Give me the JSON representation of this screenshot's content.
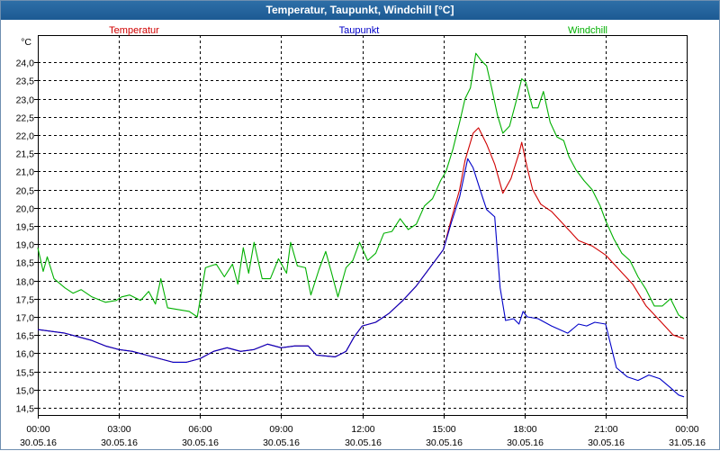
{
  "window": {
    "title": "Temperatur, Taupunkt, Windchill [°C]"
  },
  "chart_data": {
    "type": "line",
    "title": "Temperatur, Taupunkt, Windchill [°C]",
    "ylabel": "°C",
    "xlabel": "",
    "ylim": [
      14.3,
      24.75
    ],
    "y_ticks": [
      14.5,
      15.0,
      15.5,
      16.0,
      16.5,
      17.0,
      17.5,
      18.0,
      18.5,
      19.0,
      19.5,
      20.0,
      20.5,
      21.0,
      21.5,
      22.0,
      22.5,
      23.0,
      23.5,
      24.0
    ],
    "y_tick_labels": [
      "14,5",
      "15,0",
      "15,5",
      "16,0",
      "16,5",
      "17,0",
      "17,5",
      "18,0",
      "18,5",
      "19,0",
      "19,5",
      "20,0",
      "20,5",
      "21,0",
      "21,5",
      "22,0",
      "22,5",
      "23,0",
      "23,5",
      "24,0"
    ],
    "xlim_hours": [
      0,
      24
    ],
    "x_ticks": [
      {
        "hour": 0,
        "time": "00:00",
        "date": "30.05.16"
      },
      {
        "hour": 3,
        "time": "03:00",
        "date": "30.05.16"
      },
      {
        "hour": 6,
        "time": "06:00",
        "date": "30.05.16"
      },
      {
        "hour": 9,
        "time": "09:00",
        "date": "30.05.16"
      },
      {
        "hour": 12,
        "time": "12:00",
        "date": "30.05.16"
      },
      {
        "hour": 15,
        "time": "15:00",
        "date": "30.05.16"
      },
      {
        "hour": 18,
        "time": "18:00",
        "date": "30.05.16"
      },
      {
        "hour": 21,
        "time": "21:00",
        "date": "30.05.16"
      },
      {
        "hour": 24,
        "time": "00:00",
        "date": "31.05.16"
      }
    ],
    "grid": true,
    "legend_position": "top",
    "series": [
      {
        "name": "Temperatur",
        "color": "#d00000",
        "points": [
          [
            0,
            16.65
          ],
          [
            0.5,
            16.6
          ],
          [
            1,
            16.55
          ],
          [
            1.5,
            16.45
          ],
          [
            2,
            16.35
          ],
          [
            2.5,
            16.2
          ],
          [
            3,
            16.1
          ],
          [
            3.5,
            16.05
          ],
          [
            4,
            15.95
          ],
          [
            4.5,
            15.85
          ],
          [
            5,
            15.75
          ],
          [
            5.5,
            15.75
          ],
          [
            6,
            15.85
          ],
          [
            6.5,
            16.05
          ],
          [
            7,
            16.15
          ],
          [
            7.5,
            16.05
          ],
          [
            8,
            16.1
          ],
          [
            8.5,
            16.25
          ],
          [
            9,
            16.15
          ],
          [
            9.5,
            16.2
          ],
          [
            10,
            16.2
          ],
          [
            10.3,
            15.95
          ],
          [
            11,
            15.9
          ],
          [
            11.4,
            16.05
          ],
          [
            11.7,
            16.45
          ],
          [
            12,
            16.75
          ],
          [
            12.5,
            16.85
          ],
          [
            13,
            17.1
          ],
          [
            13.5,
            17.45
          ],
          [
            14,
            17.85
          ],
          [
            14.5,
            18.35
          ],
          [
            15,
            18.85
          ],
          [
            15.3,
            19.7
          ],
          [
            15.6,
            20.5
          ],
          [
            15.8,
            21.3
          ],
          [
            16.1,
            22.05
          ],
          [
            16.3,
            22.2
          ],
          [
            16.6,
            21.75
          ],
          [
            16.9,
            21.2
          ],
          [
            17.2,
            20.4
          ],
          [
            17.5,
            20.8
          ],
          [
            17.8,
            21.5
          ],
          [
            17.9,
            21.8
          ],
          [
            18.1,
            21.1
          ],
          [
            18.3,
            20.5
          ],
          [
            18.6,
            20.1
          ],
          [
            19,
            19.9
          ],
          [
            19.5,
            19.5
          ],
          [
            20,
            19.1
          ],
          [
            20.5,
            18.95
          ],
          [
            21,
            18.7
          ],
          [
            21.5,
            18.3
          ],
          [
            22,
            17.9
          ],
          [
            22.5,
            17.3
          ],
          [
            23,
            16.9
          ],
          [
            23.5,
            16.5
          ],
          [
            23.9,
            16.4
          ]
        ]
      },
      {
        "name": "Taupunkt",
        "color": "#0000c8",
        "points": [
          [
            0,
            16.65
          ],
          [
            0.5,
            16.6
          ],
          [
            1,
            16.55
          ],
          [
            1.5,
            16.45
          ],
          [
            2,
            16.35
          ],
          [
            2.5,
            16.2
          ],
          [
            3,
            16.1
          ],
          [
            3.5,
            16.05
          ],
          [
            4,
            15.95
          ],
          [
            4.5,
            15.85
          ],
          [
            5,
            15.75
          ],
          [
            5.5,
            15.75
          ],
          [
            6,
            15.85
          ],
          [
            6.5,
            16.05
          ],
          [
            7,
            16.15
          ],
          [
            7.5,
            16.05
          ],
          [
            8,
            16.1
          ],
          [
            8.5,
            16.25
          ],
          [
            9,
            16.15
          ],
          [
            9.5,
            16.2
          ],
          [
            10,
            16.2
          ],
          [
            10.3,
            15.95
          ],
          [
            11,
            15.9
          ],
          [
            11.4,
            16.05
          ],
          [
            11.7,
            16.45
          ],
          [
            12,
            16.75
          ],
          [
            12.5,
            16.85
          ],
          [
            13,
            17.1
          ],
          [
            13.5,
            17.45
          ],
          [
            14,
            17.85
          ],
          [
            14.5,
            18.35
          ],
          [
            15,
            18.85
          ],
          [
            15.3,
            19.6
          ],
          [
            15.6,
            20.3
          ],
          [
            15.8,
            21.0
          ],
          [
            15.9,
            21.35
          ],
          [
            16.1,
            21.1
          ],
          [
            16.4,
            20.4
          ],
          [
            16.6,
            19.95
          ],
          [
            16.9,
            19.75
          ],
          [
            17.1,
            17.8
          ],
          [
            17.3,
            16.9
          ],
          [
            17.6,
            16.95
          ],
          [
            17.8,
            16.8
          ],
          [
            17.95,
            17.15
          ],
          [
            18.1,
            17.0
          ],
          [
            18.5,
            16.95
          ],
          [
            19,
            16.75
          ],
          [
            19.3,
            16.65
          ],
          [
            19.6,
            16.55
          ],
          [
            20,
            16.8
          ],
          [
            20.3,
            16.75
          ],
          [
            20.6,
            16.85
          ],
          [
            21,
            16.8
          ],
          [
            21.4,
            15.6
          ],
          [
            21.8,
            15.35
          ],
          [
            22.2,
            15.25
          ],
          [
            22.6,
            15.4
          ],
          [
            23,
            15.3
          ],
          [
            23.4,
            15.05
          ],
          [
            23.7,
            14.85
          ],
          [
            23.9,
            14.8
          ]
        ]
      },
      {
        "name": "Windchill",
        "color": "#00b000",
        "points": [
          [
            0,
            18.9
          ],
          [
            0.2,
            18.25
          ],
          [
            0.35,
            18.65
          ],
          [
            0.6,
            18.05
          ],
          [
            1,
            17.8
          ],
          [
            1.3,
            17.65
          ],
          [
            1.6,
            17.75
          ],
          [
            2,
            17.55
          ],
          [
            2.5,
            17.4
          ],
          [
            2.9,
            17.45
          ],
          [
            3.1,
            17.55
          ],
          [
            3.4,
            17.6
          ],
          [
            3.8,
            17.45
          ],
          [
            4.1,
            17.7
          ],
          [
            4.35,
            17.35
          ],
          [
            4.55,
            18.05
          ],
          [
            4.8,
            17.25
          ],
          [
            5.2,
            17.2
          ],
          [
            5.6,
            17.15
          ],
          [
            5.9,
            17.0
          ],
          [
            6.2,
            18.35
          ],
          [
            6.6,
            18.45
          ],
          [
            6.9,
            18.1
          ],
          [
            7.2,
            18.45
          ],
          [
            7.4,
            17.9
          ],
          [
            7.6,
            18.9
          ],
          [
            7.8,
            18.2
          ],
          [
            8.0,
            19.05
          ],
          [
            8.3,
            18.05
          ],
          [
            8.6,
            18.05
          ],
          [
            8.9,
            18.6
          ],
          [
            9.2,
            18.2
          ],
          [
            9.35,
            19.05
          ],
          [
            9.6,
            18.4
          ],
          [
            9.9,
            18.35
          ],
          [
            10.1,
            17.6
          ],
          [
            10.4,
            18.3
          ],
          [
            10.65,
            18.8
          ],
          [
            10.85,
            18.25
          ],
          [
            11.1,
            17.55
          ],
          [
            11.4,
            18.35
          ],
          [
            11.65,
            18.55
          ],
          [
            11.9,
            19.05
          ],
          [
            12.2,
            18.55
          ],
          [
            12.5,
            18.75
          ],
          [
            12.8,
            19.3
          ],
          [
            13.1,
            19.35
          ],
          [
            13.4,
            19.7
          ],
          [
            13.7,
            19.4
          ],
          [
            14.0,
            19.55
          ],
          [
            14.3,
            20.05
          ],
          [
            14.6,
            20.25
          ],
          [
            14.9,
            20.75
          ],
          [
            15.1,
            21.0
          ],
          [
            15.35,
            21.6
          ],
          [
            15.6,
            22.35
          ],
          [
            15.8,
            23.0
          ],
          [
            16.0,
            23.3
          ],
          [
            16.2,
            24.25
          ],
          [
            16.4,
            24.05
          ],
          [
            16.6,
            23.9
          ],
          [
            16.8,
            23.25
          ],
          [
            17.0,
            22.55
          ],
          [
            17.2,
            22.05
          ],
          [
            17.45,
            22.25
          ],
          [
            17.7,
            22.95
          ],
          [
            17.9,
            23.55
          ],
          [
            18.05,
            23.45
          ],
          [
            18.3,
            22.75
          ],
          [
            18.5,
            22.75
          ],
          [
            18.7,
            23.2
          ],
          [
            18.95,
            22.35
          ],
          [
            19.2,
            21.95
          ],
          [
            19.45,
            21.85
          ],
          [
            19.65,
            21.4
          ],
          [
            19.9,
            21.05
          ],
          [
            20.2,
            20.75
          ],
          [
            20.5,
            20.5
          ],
          [
            20.8,
            20.05
          ],
          [
            21.0,
            19.65
          ],
          [
            21.3,
            19.15
          ],
          [
            21.6,
            18.75
          ],
          [
            21.9,
            18.55
          ],
          [
            22.2,
            18.1
          ],
          [
            22.5,
            17.75
          ],
          [
            22.8,
            17.3
          ],
          [
            23.1,
            17.3
          ],
          [
            23.4,
            17.5
          ],
          [
            23.7,
            17.05
          ],
          [
            23.9,
            16.95
          ]
        ]
      }
    ]
  }
}
